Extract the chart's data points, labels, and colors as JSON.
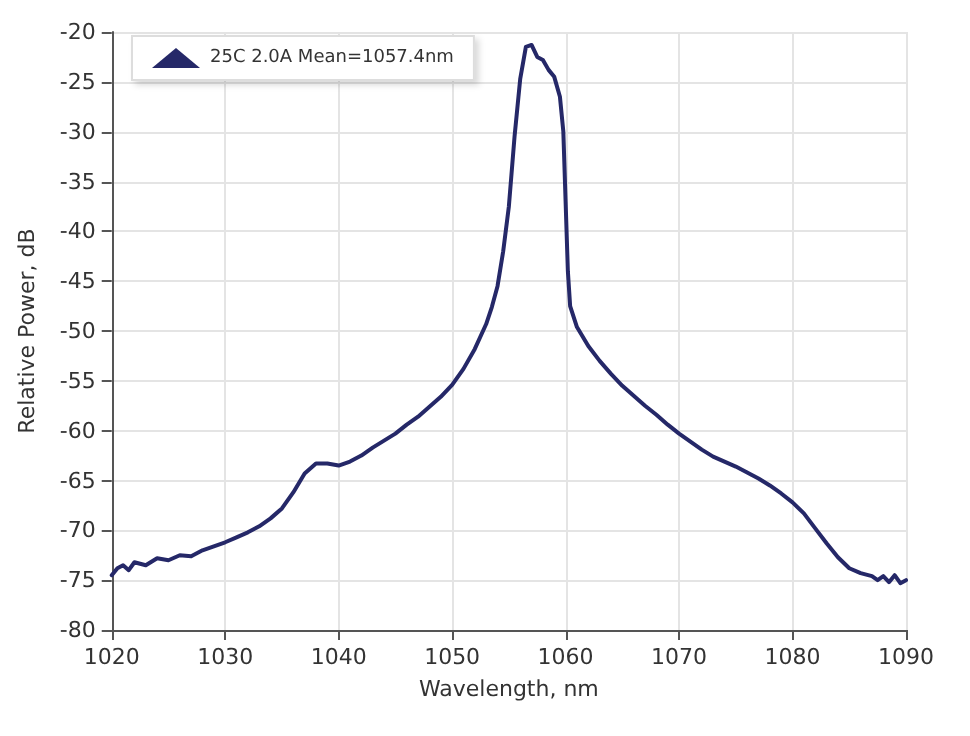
{
  "chart_data": {
    "type": "line",
    "xlabel": "Wavelength, nm",
    "ylabel": "Relative Power, dB",
    "x": [
      1020,
      1020.5,
      1021,
      1021.5,
      1022,
      1023,
      1024,
      1025,
      1026,
      1027,
      1028,
      1029,
      1030,
      1031,
      1032,
      1033,
      1034,
      1035,
      1036,
      1037,
      1038,
      1039,
      1040,
      1041,
      1042,
      1043,
      1044,
      1045,
      1046,
      1047,
      1048,
      1049,
      1050,
      1051,
      1052,
      1053,
      1053.5,
      1054,
      1054.5,
      1055,
      1055.5,
      1056,
      1056.5,
      1057,
      1057.5,
      1058,
      1058.5,
      1059,
      1059.5,
      1059.8,
      1060,
      1060.2,
      1060.4,
      1061,
      1062,
      1063,
      1064,
      1065,
      1066,
      1067,
      1068,
      1069,
      1070,
      1071,
      1072,
      1073,
      1074,
      1075,
      1076,
      1077,
      1078,
      1079,
      1080,
      1081,
      1082,
      1083,
      1084,
      1085,
      1086,
      1087,
      1087.5,
      1088,
      1088.5,
      1089,
      1089.5,
      1090
    ],
    "series": [
      {
        "name": "25C 2.0A Mean=1057.4nm",
        "color": "#252868",
        "values": [
          -74.5,
          -73.8,
          -73.5,
          -74,
          -73.2,
          -73.5,
          -72.8,
          -73,
          -72.5,
          -72.6,
          -72,
          -71.6,
          -71.2,
          -70.7,
          -70.2,
          -69.6,
          -68.8,
          -67.8,
          -66.2,
          -64.3,
          -63.3,
          -63.3,
          -63.5,
          -63.1,
          -62.5,
          -61.7,
          -61,
          -60.3,
          -59.4,
          -58.6,
          -57.6,
          -56.6,
          -55.4,
          -53.8,
          -51.8,
          -49.3,
          -47.6,
          -45.5,
          -42,
          -37.5,
          -30.5,
          -24.7,
          -21.5,
          -21.3,
          -22.5,
          -22.8,
          -23.8,
          -24.5,
          -26.5,
          -30,
          -37,
          -44,
          -47.5,
          -49.6,
          -51.5,
          -53,
          -54.3,
          -55.5,
          -56.5,
          -57.5,
          -58.4,
          -59.4,
          -60.3,
          -61.1,
          -61.9,
          -62.6,
          -63.1,
          -63.6,
          -64.2,
          -64.8,
          -65.5,
          -66.3,
          -67.2,
          -68.3,
          -69.8,
          -71.3,
          -72.7,
          -73.8,
          -74.3,
          -74.6,
          -75,
          -74.6,
          -75.2,
          -74.5,
          -75.3,
          -75
        ]
      }
    ],
    "xlim": [
      1020,
      1090
    ],
    "xticks": [
      1020,
      1030,
      1040,
      1050,
      1060,
      1070,
      1080,
      1090
    ],
    "ylim": [
      -80,
      -20
    ],
    "yticks": [
      -80,
      -75,
      -70,
      -65,
      -60,
      -55,
      -50,
      -45,
      -40,
      -35,
      -30,
      -25,
      -20
    ],
    "grid": true,
    "legend": "top left",
    "marker": "none",
    "line_style": "solid"
  }
}
